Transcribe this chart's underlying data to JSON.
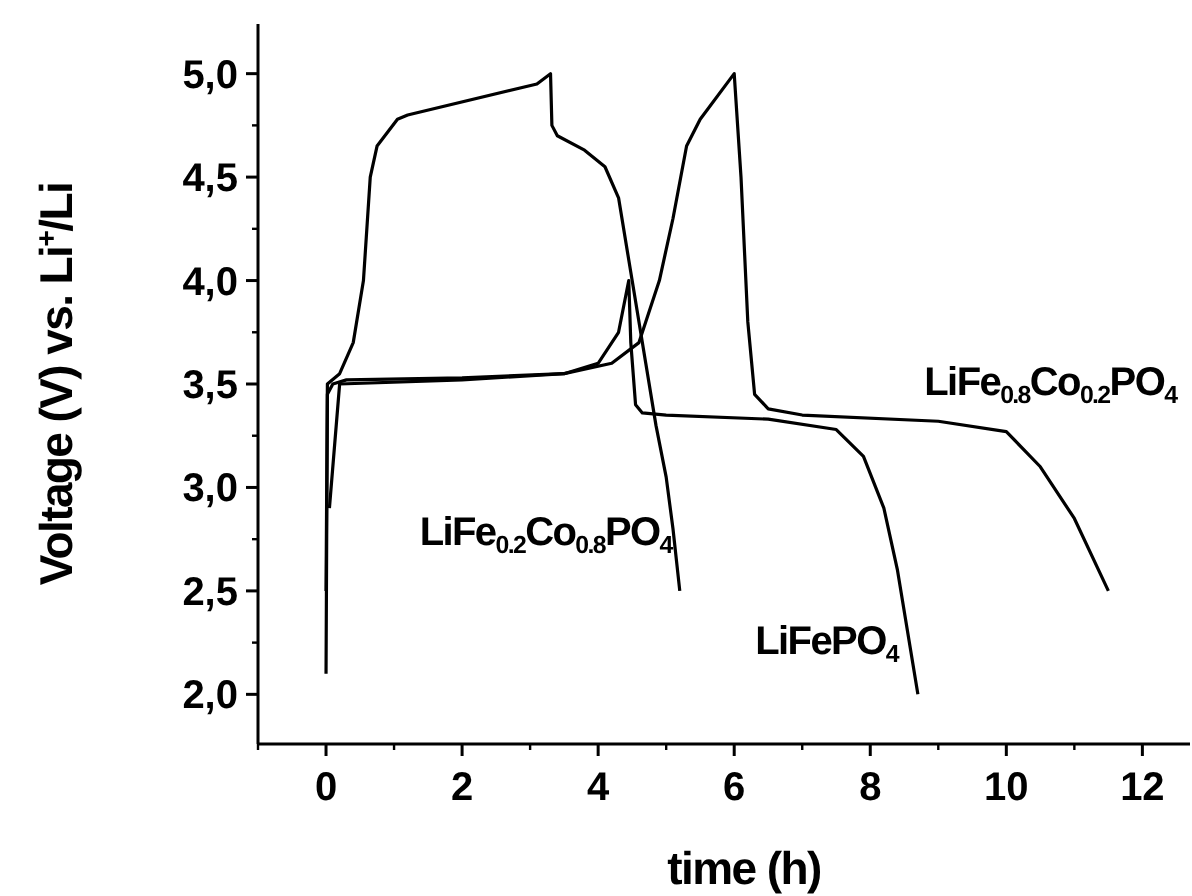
{
  "chart_data": {
    "type": "line",
    "xlabel": "time (h)",
    "ylabel": "Voltage (V) vs. Li$^{+}$/Li",
    "xlim": [
      -1,
      12.7
    ],
    "ylim": [
      1.76,
      5.24
    ],
    "xticks": [
      0,
      2,
      4,
      6,
      8,
      10,
      12
    ],
    "yticks": [
      {
        "value": 2,
        "label": "2,0"
      },
      {
        "value": 2.5,
        "label": "2,5"
      },
      {
        "value": 3,
        "label": "3,0"
      },
      {
        "value": 3.5,
        "label": "3,5"
      },
      {
        "value": 4,
        "label": "4,0"
      },
      {
        "value": 4.5,
        "label": "4,5"
      },
      {
        "value": 5,
        "label": "5,0"
      }
    ],
    "grid": false,
    "marker": "none",
    "line_style": "solid",
    "series": [
      {
        "name": "LiFe$_{0.2}$Co$_{0.8}$PO$_{4}$",
        "color": "#000000",
        "x": [
          0,
          0.02,
          0.2,
          0.4,
          0.55,
          0.65,
          0.75,
          1.05,
          1.2,
          3.1,
          3.3,
          3.32,
          3.4,
          3.8,
          4.1,
          4.3,
          4.5,
          4.7,
          4.85,
          5.0,
          5.1,
          5.2
        ],
        "values": [
          2.5,
          3.5,
          3.55,
          3.7,
          4.0,
          4.5,
          4.65,
          4.78,
          4.8,
          4.95,
          5.0,
          4.75,
          4.7,
          4.63,
          4.55,
          4.4,
          4.0,
          3.6,
          3.3,
          3.05,
          2.8,
          2.5
        ]
      },
      {
        "name": "LiFePO$_{4}$",
        "color": "#000000",
        "x": [
          0,
          0.02,
          0.1,
          0.3,
          2,
          3.5,
          4.0,
          4.3,
          4.45,
          4.48,
          4.55,
          4.65,
          5,
          6.5,
          7.5,
          7.9,
          8.2,
          8.4,
          8.55,
          8.7
        ],
        "values": [
          2.1,
          3.45,
          3.5,
          3.52,
          3.53,
          3.55,
          3.6,
          3.75,
          4.0,
          3.7,
          3.4,
          3.36,
          3.35,
          3.33,
          3.28,
          3.15,
          2.9,
          2.6,
          2.3,
          2.0
        ]
      },
      {
        "name": "LiFe$_{0.8}$Co$_{0.2}$PO$_{4}$",
        "color": "#000000",
        "x": [
          0.05,
          0.2,
          2,
          3.5,
          4.2,
          4.6,
          4.9,
          5.1,
          5.3,
          5.5,
          6.0,
          6.1,
          6.2,
          6.3,
          6.5,
          7,
          9,
          10,
          10.5,
          11,
          11.5
        ],
        "values": [
          2.9,
          3.5,
          3.52,
          3.55,
          3.6,
          3.7,
          4.0,
          4.3,
          4.65,
          4.78,
          5.0,
          4.5,
          3.8,
          3.45,
          3.38,
          3.35,
          3.32,
          3.27,
          3.1,
          2.85,
          2.5
        ]
      }
    ]
  }
}
